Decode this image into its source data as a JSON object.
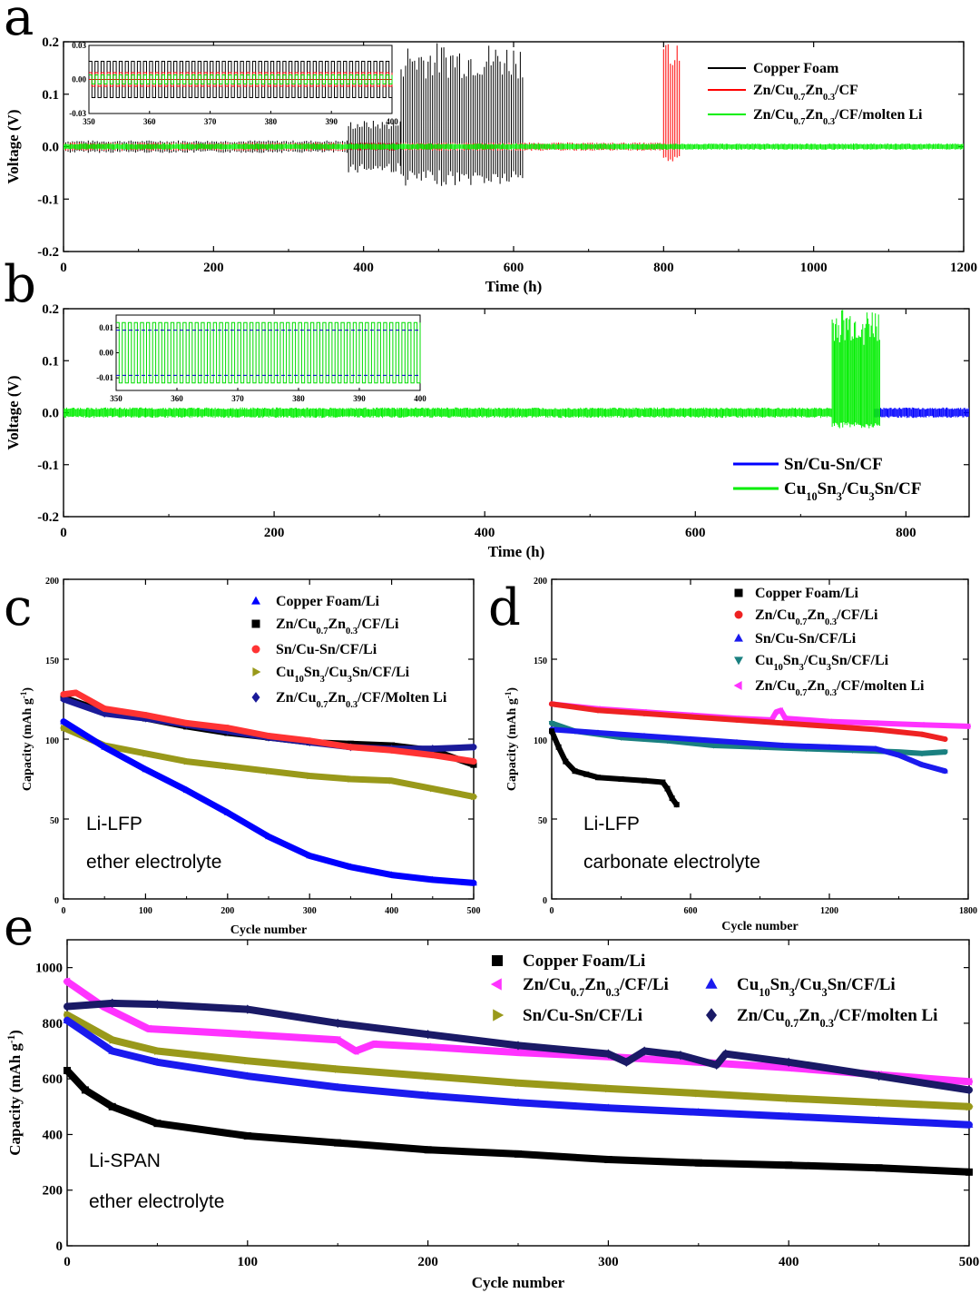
{
  "chart_data": [
    {
      "panel": "a",
      "type": "line",
      "xlabel": "Time (h)",
      "ylabel": "Voltage (V)",
      "xlim": [
        0,
        1200
      ],
      "ylim": [
        -0.2,
        0.2
      ],
      "xticks": [
        "0",
        "200",
        "400",
        "600",
        "800",
        "1000",
        "1200"
      ],
      "yticks": [
        "-0.2",
        "-0.1",
        "0.0",
        "0.1",
        "0.2"
      ],
      "series": [
        {
          "name": "Copper Foam",
          "color": "#000000",
          "segments": [
            {
              "x0": 0,
              "x1": 380,
              "amp": 0.012
            },
            {
              "x0": 380,
              "x1": 450,
              "amp": 0.05
            },
            {
              "x0": 450,
              "x1": 612,
              "amp": 0.2,
              "amp_neg": 0.075
            }
          ]
        },
        {
          "name": "Zn/Cu0.7Zn0.3/CF",
          "color": "#ff0000",
          "segments": [
            {
              "x0": 0,
              "x1": 800,
              "amp": 0.008
            },
            {
              "x0": 800,
              "x1": 822,
              "amp": 0.2,
              "amp_neg": 0.03
            }
          ]
        },
        {
          "name": "Zn/Cu0.7Zn0.3/CF/molten Li",
          "color": "#00ee00",
          "segments": [
            {
              "x0": 0,
              "x1": 1200,
              "amp": 0.006
            }
          ]
        }
      ],
      "inset": {
        "xlim": [
          350,
          400
        ],
        "ylim": [
          -0.03,
          0.03
        ],
        "xticks": [
          "350",
          "360",
          "370",
          "380",
          "390",
          "400"
        ],
        "yticks": [
          "-0.03",
          "0.00",
          "0.03"
        ]
      }
    },
    {
      "panel": "b",
      "type": "line",
      "xlabel": "Time (h)",
      "ylabel": "Voltage (V)",
      "xlim": [
        0,
        860
      ],
      "ylim": [
        -0.2,
        0.2
      ],
      "xticks": [
        "0",
        "200",
        "400",
        "600",
        "800"
      ],
      "yticks": [
        "-0.2",
        "-0.1",
        "0.0",
        "0.1",
        "0.2"
      ],
      "series": [
        {
          "name": "Sn/Cu-Sn/CF",
          "color": "#0000ff",
          "segments": [
            {
              "x0": 770,
              "x1": 860,
              "amp": 0.01
            }
          ]
        },
        {
          "name": "Cu10Sn3/Cu3Sn/CF",
          "color": "#00ee00",
          "segments": [
            {
              "x0": 0,
              "x1": 730,
              "amp": 0.01
            },
            {
              "x0": 730,
              "x1": 775,
              "amp": 0.2,
              "amp_neg": 0.03
            }
          ]
        }
      ],
      "inset": {
        "xlim": [
          350,
          400
        ],
        "ylim": [
          -0.015,
          0.015
        ],
        "xticks": [
          "350",
          "360",
          "370",
          "380",
          "390",
          "400"
        ],
        "yticks": [
          "-0.01",
          "0.00",
          "0.01"
        ]
      }
    },
    {
      "panel": "c",
      "type": "scatter",
      "xlabel": "Cycle number",
      "ylabel": "Capacity (mAh g-1)",
      "xlim": [
        0,
        500
      ],
      "ylim": [
        0,
        200
      ],
      "xticks": [
        "0",
        "100",
        "200",
        "300",
        "400",
        "500"
      ],
      "yticks": [
        "0",
        "50",
        "100",
        "150",
        "200"
      ],
      "annotation": [
        "Li-LFP",
        "ether electrolyte"
      ],
      "series": [
        {
          "name": "Copper Foam/Li",
          "color": "#0000ff",
          "marker": "triangle",
          "points": [
            [
              0,
              111
            ],
            [
              50,
              95
            ],
            [
              100,
              81
            ],
            [
              150,
              68
            ],
            [
              200,
              54
            ],
            [
              250,
              39
            ],
            [
              300,
              27
            ],
            [
              350,
              20
            ],
            [
              400,
              15
            ],
            [
              450,
              12
            ],
            [
              500,
              10
            ]
          ]
        },
        {
          "name": "Zn/Cu0.7Zn0.3/CF/Li",
          "color": "#000000",
          "marker": "square",
          "points": [
            [
              0,
              126
            ],
            [
              50,
              117
            ],
            [
              100,
              113
            ],
            [
              150,
              108
            ],
            [
              200,
              104
            ],
            [
              250,
              101
            ],
            [
              300,
              98
            ],
            [
              350,
              97
            ],
            [
              400,
              96
            ],
            [
              450,
              93
            ],
            [
              500,
              84
            ]
          ]
        },
        {
          "name": "Sn/Cu-Sn/CF/Li",
          "color": "#ff3333",
          "marker": "circle",
          "points": [
            [
              0,
              128
            ],
            [
              15,
              129
            ],
            [
              50,
              119
            ],
            [
              100,
              115
            ],
            [
              150,
              110
            ],
            [
              200,
              107
            ],
            [
              250,
              102
            ],
            [
              300,
              99
            ],
            [
              350,
              95
            ],
            [
              400,
              93
            ],
            [
              450,
              90
            ],
            [
              500,
              86
            ]
          ]
        },
        {
          "name": "Cu10Sn3/Cu3Sn/CF/Li",
          "color": "#99991a",
          "marker": "triangle-right",
          "points": [
            [
              0,
              107
            ],
            [
              50,
              96
            ],
            [
              100,
              91
            ],
            [
              150,
              86
            ],
            [
              200,
              83
            ],
            [
              250,
              80
            ],
            [
              300,
              77
            ],
            [
              350,
              75
            ],
            [
              400,
              74
            ],
            [
              450,
              69
            ],
            [
              500,
              64
            ]
          ]
        },
        {
          "name": "Zn/Cu0.7Zn0.3/CF/Molten Li",
          "color": "#1a1a99",
          "marker": "diamond",
          "points": [
            [
              0,
              125
            ],
            [
              50,
              116
            ],
            [
              100,
              113
            ],
            [
              150,
              109
            ],
            [
              200,
              105
            ],
            [
              250,
              101
            ],
            [
              300,
              98
            ],
            [
              350,
              95
            ],
            [
              400,
              94
            ],
            [
              450,
              94
            ],
            [
              500,
              95
            ]
          ]
        }
      ]
    },
    {
      "panel": "d",
      "type": "scatter",
      "xlabel": "Cycle number",
      "ylabel": "Capacity (mAh g-1)",
      "xlim": [
        0,
        1800
      ],
      "ylim": [
        0,
        200
      ],
      "xticks": [
        "0",
        "600",
        "1200",
        "1800"
      ],
      "yticks": [
        "0",
        "50",
        "100",
        "150",
        "200"
      ],
      "annotation": [
        "Li-LFP",
        "carbonate electrolyte"
      ],
      "series": [
        {
          "name": "Copper Foam/Li",
          "color": "#000000",
          "marker": "square",
          "points": [
            [
              0,
              105
            ],
            [
              30,
              95
            ],
            [
              60,
              86
            ],
            [
              100,
              80
            ],
            [
              150,
              78
            ],
            [
              200,
              76
            ],
            [
              300,
              75
            ],
            [
              400,
              74
            ],
            [
              480,
              73
            ],
            [
              500,
              69
            ],
            [
              520,
              63
            ],
            [
              540,
              59
            ]
          ]
        },
        {
          "name": "Zn/Cu0.7Zn0.3/CF/Li",
          "color": "#ee2222",
          "marker": "circle",
          "points": [
            [
              0,
              122
            ],
            [
              200,
              118
            ],
            [
              400,
              116
            ],
            [
              600,
              114
            ],
            [
              800,
              112
            ],
            [
              1000,
              110
            ],
            [
              1200,
              108
            ],
            [
              1400,
              106
            ],
            [
              1600,
              103
            ],
            [
              1700,
              100
            ]
          ]
        },
        {
          "name": "Sn/Cu-Sn/CF/Li",
          "color": "#1a1aee",
          "marker": "triangle",
          "points": [
            [
              0,
              106
            ],
            [
              200,
              104
            ],
            [
              400,
              102
            ],
            [
              600,
              100
            ],
            [
              800,
              98
            ],
            [
              1000,
              96
            ],
            [
              1200,
              95
            ],
            [
              1400,
              94
            ],
            [
              1500,
              90
            ],
            [
              1600,
              84
            ],
            [
              1700,
              80
            ]
          ]
        },
        {
          "name": "Cu10Sn3/Cu3Sn/CF/Li",
          "color": "#1a8080",
          "marker": "triangle-down",
          "points": [
            [
              0,
              110
            ],
            [
              100,
              105
            ],
            [
              300,
              101
            ],
            [
              500,
              99
            ],
            [
              700,
              96
            ],
            [
              900,
              95
            ],
            [
              1100,
              94
            ],
            [
              1300,
              93
            ],
            [
              1500,
              92
            ],
            [
              1600,
              91
            ],
            [
              1700,
              92
            ]
          ]
        },
        {
          "name": "Zn/Cu0.7Zn0.3/CF/molten Li",
          "color": "#ff33ff",
          "marker": "triangle-left",
          "points": [
            [
              0,
              122
            ],
            [
              200,
              119
            ],
            [
              400,
              117
            ],
            [
              600,
              115
            ],
            [
              800,
              113
            ],
            [
              950,
              112
            ],
            [
              970,
              117
            ],
            [
              990,
              118
            ],
            [
              1010,
              113
            ],
            [
              1200,
              111
            ],
            [
              1400,
              110
            ],
            [
              1600,
              109
            ],
            [
              1800,
              108
            ]
          ]
        }
      ]
    },
    {
      "panel": "e",
      "type": "scatter",
      "xlabel": "Cycle number",
      "ylabel": "Capacity (mAh g-1)",
      "xlim": [
        0,
        500
      ],
      "ylim": [
        0,
        1100
      ],
      "xticks": [
        "0",
        "100",
        "200",
        "300",
        "400",
        "500"
      ],
      "yticks": [
        "0",
        "200",
        "400",
        "600",
        "800",
        "1000"
      ],
      "annotation": [
        "Li-SPAN",
        "ether electrolyte"
      ],
      "series": [
        {
          "name": "Copper Foam/Li",
          "color": "#000000",
          "marker": "square",
          "points": [
            [
              0,
              630
            ],
            [
              10,
              560
            ],
            [
              25,
              500
            ],
            [
              50,
              440
            ],
            [
              100,
              395
            ],
            [
              150,
              370
            ],
            [
              200,
              345
            ],
            [
              250,
              330
            ],
            [
              300,
              310
            ],
            [
              350,
              298
            ],
            [
              400,
              290
            ],
            [
              450,
              280
            ],
            [
              500,
              265
            ]
          ]
        },
        {
          "name": "Zn/Cu0.7Zn0.3/CF/Li",
          "color": "#ff33ff",
          "marker": "triangle-left",
          "points": [
            [
              0,
              950
            ],
            [
              20,
              860
            ],
            [
              45,
              780
            ],
            [
              100,
              760
            ],
            [
              150,
              740
            ],
            [
              160,
              700
            ],
            [
              170,
              725
            ],
            [
              200,
              715
            ],
            [
              250,
              695
            ],
            [
              300,
              680
            ],
            [
              350,
              660
            ],
            [
              400,
              640
            ],
            [
              450,
              615
            ],
            [
              500,
              590
            ]
          ]
        },
        {
          "name": "Cu10Sn3/Cu3Sn/CF/Li",
          "color": "#1a1aee",
          "marker": "triangle",
          "points": [
            [
              0,
              810
            ],
            [
              25,
              700
            ],
            [
              50,
              660
            ],
            [
              100,
              610
            ],
            [
              150,
              570
            ],
            [
              200,
              540
            ],
            [
              250,
              515
            ],
            [
              300,
              495
            ],
            [
              350,
              480
            ],
            [
              400,
              465
            ],
            [
              450,
              450
            ],
            [
              500,
              435
            ]
          ]
        },
        {
          "name": "Sn/Cu-Sn/CF/Li",
          "color": "#99991a",
          "marker": "triangle-right",
          "points": [
            [
              0,
              830
            ],
            [
              25,
              740
            ],
            [
              50,
              700
            ],
            [
              100,
              665
            ],
            [
              150,
              635
            ],
            [
              200,
              610
            ],
            [
              250,
              585
            ],
            [
              300,
              565
            ],
            [
              350,
              548
            ],
            [
              400,
              530
            ],
            [
              450,
              515
            ],
            [
              500,
              500
            ]
          ]
        },
        {
          "name": "Zn/Cu0.7Zn0.3/CF/molten Li",
          "color": "#1a1a66",
          "marker": "diamond",
          "points": [
            [
              0,
              860
            ],
            [
              25,
              872
            ],
            [
              50,
              868
            ],
            [
              100,
              850
            ],
            [
              150,
              800
            ],
            [
              200,
              760
            ],
            [
              250,
              720
            ],
            [
              300,
              690
            ],
            [
              310,
              660
            ],
            [
              320,
              700
            ],
            [
              340,
              685
            ],
            [
              360,
              650
            ],
            [
              365,
              690
            ],
            [
              400,
              660
            ],
            [
              450,
              610
            ],
            [
              500,
              560
            ]
          ]
        }
      ]
    }
  ],
  "labels": {
    "panel_a": "a",
    "panel_b": "b",
    "panel_c": "c",
    "panel_d": "d",
    "panel_e": "e",
    "time_label": "Time (h)",
    "voltage_label": "Voltage (V)",
    "cycle_label": "Cycle number",
    "capacity_label": "Capacity (mAh g",
    "capacity_sup": "-1",
    "capacity_close": ")"
  }
}
